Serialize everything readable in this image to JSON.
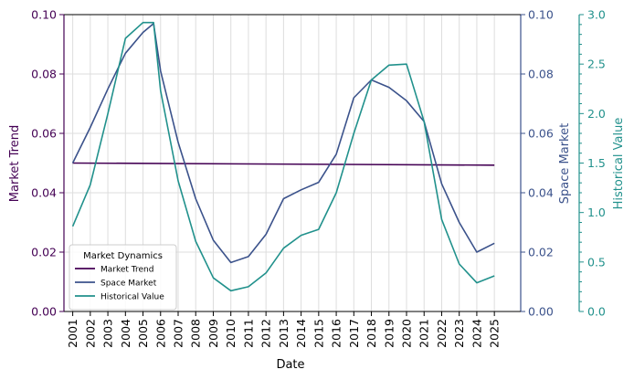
{
  "chart_data": {
    "type": "line",
    "xlabel": "Date",
    "x": [
      "2001",
      "2002",
      "2003",
      "2004",
      "2005",
      "2006",
      "2007",
      "2008",
      "2009",
      "2010",
      "2011",
      "2012",
      "2013",
      "2014",
      "2015",
      "2016",
      "2017",
      "2018",
      "2019",
      "2020",
      "2021",
      "2022",
      "2023",
      "2024",
      "2025"
    ],
    "axes": {
      "left": {
        "label": "Market Trend",
        "ylim": [
          0,
          0.1
        ],
        "ticks": [
          "0.00",
          "0.02",
          "0.04",
          "0.06",
          "0.08",
          "0.10"
        ],
        "color": "#440154"
      },
      "right": {
        "label": "Space Market",
        "ylim": [
          0,
          0.1
        ],
        "ticks": [
          "0.00",
          "0.02",
          "0.04",
          "0.06",
          "0.08",
          "0.10"
        ],
        "color": "#3b528b"
      },
      "right2": {
        "label": "Historical Value",
        "ylim": [
          0,
          3.0
        ],
        "ticks": [
          "0.0",
          "0.5",
          "1.0",
          "1.5",
          "2.0",
          "2.5",
          "3.0"
        ],
        "color": "#21918c"
      }
    },
    "legend": {
      "title": "Market Dynamics",
      "placement": "lower-left"
    },
    "grid": true,
    "series": [
      {
        "name": "Market Trend",
        "axis": "left",
        "color": "#440154",
        "x": [
          "2001",
          "2025"
        ],
        "values": [
          0.05,
          0.0493
        ]
      },
      {
        "name": "Space Market",
        "axis": "right",
        "color": "#3b528b",
        "x": [
          "2001",
          "2002",
          "2003",
          "2004",
          "2005",
          "2005.6",
          "2006",
          "2007",
          "2008",
          "2009",
          "2010",
          "2011",
          "2012",
          "2013",
          "2014",
          "2015",
          "2016",
          "2017",
          "2018",
          "2019",
          "2020",
          "2021",
          "2022",
          "2023",
          "2024",
          "2025"
        ],
        "values": [
          0.05,
          0.062,
          0.075,
          0.087,
          0.094,
          0.097,
          0.081,
          0.057,
          0.038,
          0.024,
          0.0165,
          0.0185,
          0.026,
          0.038,
          0.041,
          0.0435,
          0.053,
          0.072,
          0.078,
          0.0755,
          0.071,
          0.064,
          0.043,
          0.03,
          0.02,
          0.023
        ]
      },
      {
        "name": "Historical Value",
        "axis": "right2",
        "color": "#21918c",
        "x": [
          "2001",
          "2002",
          "2003",
          "2004",
          "2005",
          "2005.6",
          "2006",
          "2007",
          "2008",
          "2009",
          "2010",
          "2011",
          "2012",
          "2013",
          "2014",
          "2015",
          "2016",
          "2017",
          "2018",
          "2019",
          "2020",
          "2021",
          "2022",
          "2023",
          "2024",
          "2025"
        ],
        "values": [
          0.86,
          1.28,
          2.0,
          2.76,
          2.92,
          2.92,
          2.23,
          1.32,
          0.71,
          0.34,
          0.21,
          0.25,
          0.39,
          0.64,
          0.77,
          0.83,
          1.2,
          1.8,
          2.34,
          2.49,
          2.5,
          1.92,
          0.93,
          0.48,
          0.29,
          0.36
        ]
      }
    ]
  }
}
